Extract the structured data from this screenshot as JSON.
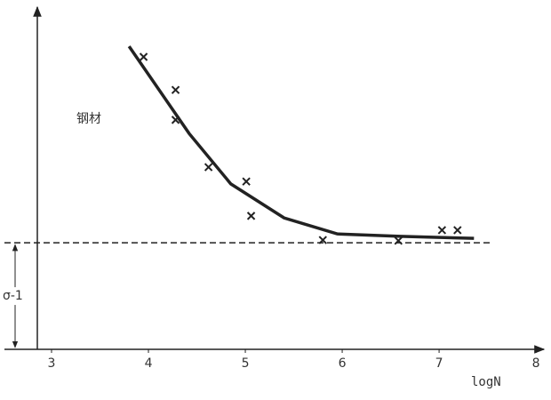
{
  "chart_data": {
    "type": "scatter",
    "annotation": "钢材",
    "x_label": "logN",
    "limit_label": "σ-1",
    "x": [
      3.95,
      4.28,
      4.28,
      4.62,
      5.01,
      5.06,
      5.8,
      6.58,
      7.03,
      7.19
    ],
    "values": [
      85.9,
      76.2,
      67.4,
      53.5,
      49.3,
      39.2,
      32.1,
      31.9,
      35.0,
      35.0
    ],
    "curve": {
      "x": [
        3.8,
        4.42,
        4.85,
        5.4,
        5.95,
        6.6,
        7.36
      ],
      "values": [
        89.0,
        63.4,
        48.6,
        38.6,
        33.9,
        33.2,
        32.6
      ]
    },
    "endurance_limit": 31.3,
    "xlim": [
      2.5,
      8.1
    ],
    "ylim": [
      0,
      100
    ],
    "xticks": [
      3,
      4,
      5,
      6,
      7,
      8
    ],
    "color": "#222"
  }
}
